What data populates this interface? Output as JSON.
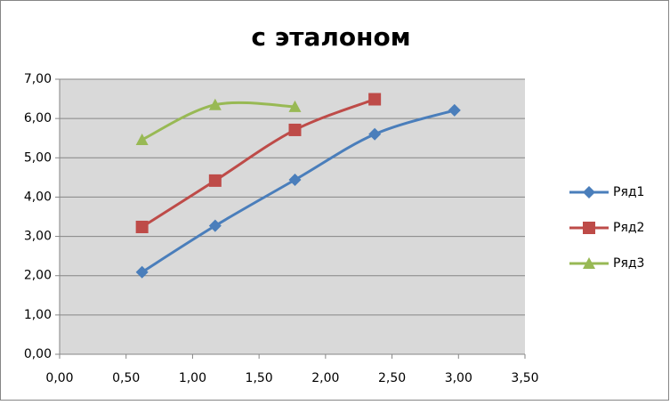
{
  "chart_data": {
    "type": "scatter",
    "title": "с эталоном",
    "smooth": true,
    "grid": true,
    "legend": "right",
    "series": [
      {
        "name": "Ряд1",
        "color": "#4a7ebb",
        "marker": "diamond",
        "x": [
          0.62,
          1.17,
          1.77,
          2.37,
          2.97
        ],
        "values": [
          2.09,
          3.27,
          4.44,
          5.6,
          6.21
        ]
      },
      {
        "name": "Ряд2",
        "color": "#be4b48",
        "marker": "square",
        "x": [
          0.62,
          1.17,
          1.77,
          2.37
        ],
        "values": [
          3.24,
          4.42,
          5.71,
          6.49
        ]
      },
      {
        "name": "Ряд3",
        "color": "#98b954",
        "marker": "triangle",
        "x": [
          0.62,
          1.17,
          1.77
        ],
        "values": [
          5.46,
          6.35,
          6.3
        ]
      }
    ],
    "xlim": [
      0,
      3.5
    ],
    "xticks": [
      {
        "value": 0,
        "label": "0,00"
      },
      {
        "value": 0.5,
        "label": "0,50"
      },
      {
        "value": 1,
        "label": "1,00"
      },
      {
        "value": 1.5,
        "label": "1,50"
      },
      {
        "value": 2,
        "label": "2,00"
      },
      {
        "value": 2.5,
        "label": "2,50"
      },
      {
        "value": 3,
        "label": "3,00"
      },
      {
        "value": 3.5,
        "label": "3,50"
      }
    ],
    "ylim": [
      0,
      7
    ],
    "yticks": [
      {
        "value": 0,
        "label": "0,00"
      },
      {
        "value": 1,
        "label": "1,00"
      },
      {
        "value": 2,
        "label": "2,00"
      },
      {
        "value": 3,
        "label": "3,00"
      },
      {
        "value": 4,
        "label": "4,00"
      },
      {
        "value": 5,
        "label": "5,00"
      },
      {
        "value": 6,
        "label": "6,00"
      },
      {
        "value": 7,
        "label": "7,00"
      }
    ]
  }
}
